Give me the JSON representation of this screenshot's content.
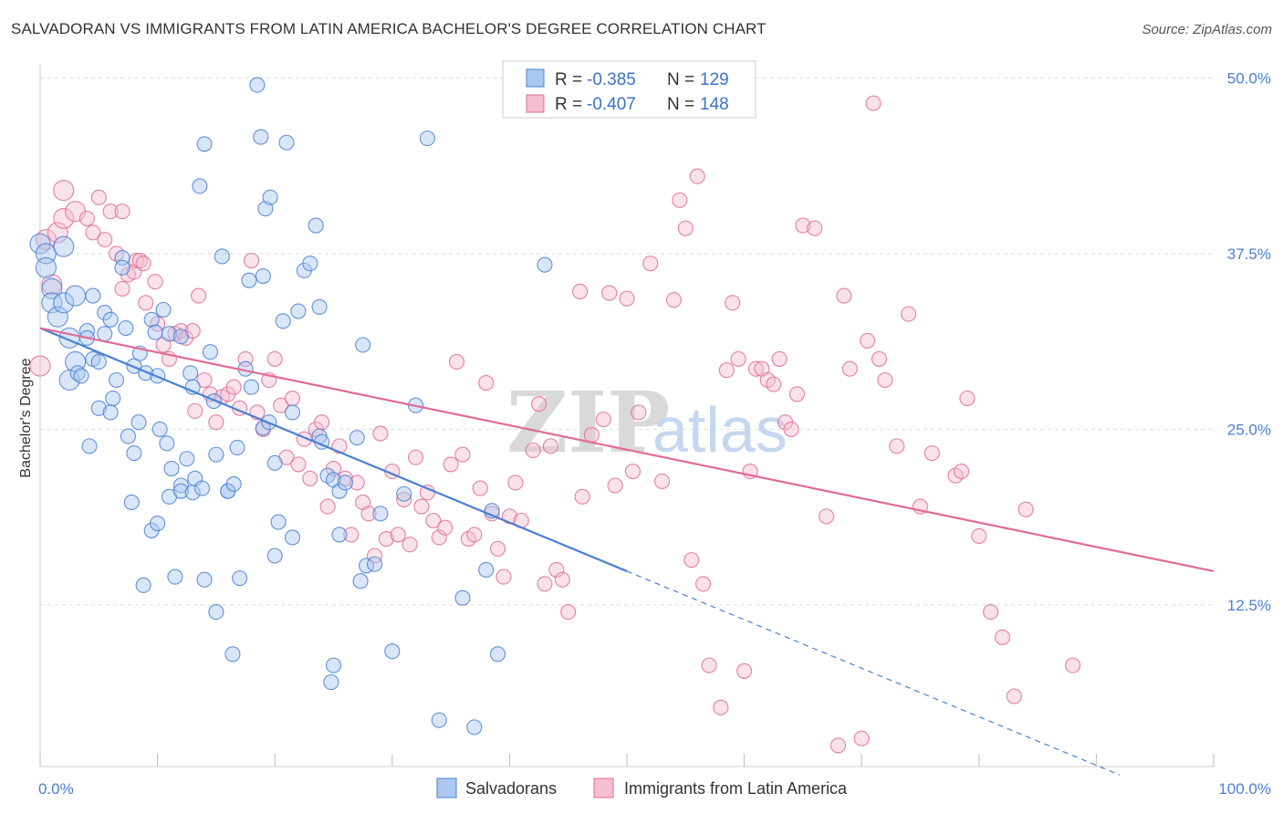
{
  "title": "SALVADORAN VS IMMIGRANTS FROM LATIN AMERICA BACHELOR'S DEGREE CORRELATION CHART",
  "source": "Source: ZipAtlas.com",
  "watermark": {
    "part1": "ZIP",
    "part2": "atlas"
  },
  "colors": {
    "blue": "#4a7fd4",
    "pink": "#e06b96",
    "blue_fill": "#aac8f0",
    "pink_fill": "#f5bfd0"
  },
  "legend": {
    "r_label": "R =",
    "n_label": "N =",
    "items": [
      {
        "r": "-0.385",
        "n": "129",
        "color": "blue"
      },
      {
        "r": "-0.407",
        "n": "148",
        "color": "pink"
      }
    ]
  },
  "chart_data": {
    "type": "scatter",
    "ylabel": "Bachelor's Degree",
    "xlim": [
      0,
      100
    ],
    "ylim": [
      1,
      51
    ],
    "x_tick_labels": [
      "0.0%",
      "100.0%"
    ],
    "y_ticks": [
      {
        "value": 12.5,
        "label": "12.5%"
      },
      {
        "value": 25.0,
        "label": "25.0%"
      },
      {
        "value": 37.5,
        "label": "37.5%"
      },
      {
        "value": 50.0,
        "label": "50.0%"
      }
    ],
    "grid": true,
    "series": [
      {
        "name": "Salvadorans",
        "color": "blue",
        "trend": {
          "x0": 0,
          "y0": 32.2,
          "x1": 50,
          "y1": 14.9,
          "dash_to_x": 92,
          "dash_to_y": 0.4
        },
        "points": [
          [
            0,
            38.2
          ],
          [
            0.5,
            37.5
          ],
          [
            0.5,
            36.5
          ],
          [
            1,
            35
          ],
          [
            1,
            34
          ],
          [
            1.5,
            33
          ],
          [
            2,
            38
          ],
          [
            2,
            34
          ],
          [
            2.5,
            31.5
          ],
          [
            2.5,
            28.5
          ],
          [
            3,
            29.8
          ],
          [
            3,
            34.5
          ],
          [
            3.2,
            29
          ],
          [
            3.5,
            28.8
          ],
          [
            4,
            32
          ],
          [
            4,
            31.5
          ],
          [
            4.2,
            23.8
          ],
          [
            4.5,
            34.5
          ],
          [
            4.5,
            30
          ],
          [
            5,
            26.5
          ],
          [
            5,
            29.8
          ],
          [
            5.5,
            33.3
          ],
          [
            5.5,
            31.8
          ],
          [
            6,
            32.8
          ],
          [
            6,
            26.2
          ],
          [
            6.2,
            27.2
          ],
          [
            6.5,
            28.5
          ],
          [
            7,
            37.2
          ],
          [
            7,
            36.5
          ],
          [
            7.3,
            32.2
          ],
          [
            7.5,
            24.5
          ],
          [
            7.8,
            19.8
          ],
          [
            8,
            29.5
          ],
          [
            8,
            23.3
          ],
          [
            8.4,
            25.5
          ],
          [
            8.5,
            30.4
          ],
          [
            8.8,
            13.9
          ],
          [
            9,
            29
          ],
          [
            9.5,
            32.8
          ],
          [
            9.5,
            17.8
          ],
          [
            9.8,
            31.9
          ],
          [
            10,
            28.8
          ],
          [
            10,
            18.3
          ],
          [
            10.2,
            25
          ],
          [
            10.5,
            33.5
          ],
          [
            10.8,
            24
          ],
          [
            11,
            31.8
          ],
          [
            11,
            20.2
          ],
          [
            11.2,
            22.2
          ],
          [
            11.5,
            14.5
          ],
          [
            12,
            31.6
          ],
          [
            12,
            21
          ],
          [
            12,
            20.6
          ],
          [
            12.5,
            22.9
          ],
          [
            12.8,
            29
          ],
          [
            13,
            28
          ],
          [
            13,
            20.5
          ],
          [
            13.2,
            21.5
          ],
          [
            13.6,
            42.3
          ],
          [
            13.8,
            20.8
          ],
          [
            14,
            45.3
          ],
          [
            14,
            14.3
          ],
          [
            14.5,
            30.5
          ],
          [
            14.8,
            27
          ],
          [
            15,
            23.2
          ],
          [
            15,
            12
          ],
          [
            15.5,
            37.3
          ],
          [
            16,
            20.6
          ],
          [
            16,
            20.6
          ],
          [
            16.4,
            9
          ],
          [
            16.5,
            21.1
          ],
          [
            16.8,
            23.7
          ],
          [
            17,
            14.4
          ],
          [
            17.5,
            29.3
          ],
          [
            17.8,
            35.6
          ],
          [
            18,
            28
          ],
          [
            18.5,
            49.5
          ],
          [
            18.8,
            45.8
          ],
          [
            19,
            35.9
          ],
          [
            19,
            25.1
          ],
          [
            19.2,
            40.7
          ],
          [
            19.5,
            25.5
          ],
          [
            19.6,
            41.5
          ],
          [
            20,
            16
          ],
          [
            20,
            22.6
          ],
          [
            20.3,
            18.4
          ],
          [
            20.7,
            32.7
          ],
          [
            21,
            45.4
          ],
          [
            21.5,
            26.2
          ],
          [
            21.5,
            17.3
          ],
          [
            22,
            33.4
          ],
          [
            22.5,
            36.3
          ],
          [
            23,
            36.8
          ],
          [
            23.5,
            39.5
          ],
          [
            23.8,
            33.7
          ],
          [
            23.8,
            24.5
          ],
          [
            24,
            24.1
          ],
          [
            24.5,
            21.7
          ],
          [
            24.8,
            7
          ],
          [
            25,
            21.4
          ],
          [
            25,
            8.2
          ],
          [
            25.5,
            20.6
          ],
          [
            25.5,
            17.5
          ],
          [
            26,
            21.2
          ],
          [
            27,
            24.4
          ],
          [
            27.3,
            14.2
          ],
          [
            27.5,
            31
          ],
          [
            27.8,
            15.3
          ],
          [
            28.5,
            15.4
          ],
          [
            29,
            19
          ],
          [
            30,
            9.2
          ],
          [
            31,
            20.4
          ],
          [
            32,
            26.7
          ],
          [
            33,
            45.7
          ],
          [
            34,
            4.3
          ],
          [
            36,
            13
          ],
          [
            37,
            3.8
          ],
          [
            38,
            15
          ],
          [
            38.5,
            19.2
          ],
          [
            39,
            9
          ],
          [
            43,
            36.7
          ]
        ]
      },
      {
        "name": "Immigrants from Latin America",
        "color": "pink",
        "trend": {
          "x0": 0,
          "y0": 32.2,
          "x1": 100,
          "y1": 14.9
        },
        "points": [
          [
            0,
            29.5
          ],
          [
            0.5,
            38.5
          ],
          [
            1,
            35.3
          ],
          [
            1.5,
            39
          ],
          [
            2,
            40
          ],
          [
            2,
            42
          ],
          [
            3,
            40.5
          ],
          [
            4,
            40
          ],
          [
            4.5,
            39
          ],
          [
            5,
            41.5
          ],
          [
            5.5,
            38.5
          ],
          [
            6,
            40.5
          ],
          [
            6.5,
            37.5
          ],
          [
            7,
            40.5
          ],
          [
            7,
            35
          ],
          [
            7.5,
            36
          ],
          [
            8,
            36.2
          ],
          [
            8.2,
            37
          ],
          [
            8.5,
            37
          ],
          [
            8.8,
            36.8
          ],
          [
            9,
            34
          ],
          [
            9.8,
            35.5
          ],
          [
            10,
            32.5
          ],
          [
            10.5,
            31
          ],
          [
            11,
            30
          ],
          [
            11.5,
            31.8
          ],
          [
            12,
            32
          ],
          [
            12.4,
            31.5
          ],
          [
            13,
            32
          ],
          [
            13.2,
            26.3
          ],
          [
            13.5,
            34.5
          ],
          [
            14,
            28.5
          ],
          [
            14.5,
            27.5
          ],
          [
            15,
            25.5
          ],
          [
            15.5,
            27.3
          ],
          [
            16,
            27.5
          ],
          [
            16.5,
            28
          ],
          [
            17,
            26.5
          ],
          [
            17.5,
            30
          ],
          [
            18,
            37
          ],
          [
            18.5,
            26.2
          ],
          [
            19,
            25
          ],
          [
            19.5,
            28.5
          ],
          [
            20,
            30
          ],
          [
            20.5,
            26.7
          ],
          [
            21,
            23
          ],
          [
            21.5,
            27.2
          ],
          [
            22,
            22.5
          ],
          [
            22.5,
            24.3
          ],
          [
            23,
            21.5
          ],
          [
            23.5,
            25
          ],
          [
            24,
            25.5
          ],
          [
            24.5,
            19.5
          ],
          [
            25,
            22.2
          ],
          [
            25.5,
            23.8
          ],
          [
            26,
            21.5
          ],
          [
            26.5,
            17.5
          ],
          [
            27,
            21.2
          ],
          [
            27.5,
            19.8
          ],
          [
            28,
            19
          ],
          [
            28.5,
            16
          ],
          [
            29,
            24.7
          ],
          [
            29.5,
            17.2
          ],
          [
            30,
            22
          ],
          [
            30.5,
            17.5
          ],
          [
            31,
            20
          ],
          [
            31.5,
            16.8
          ],
          [
            32,
            23
          ],
          [
            32.5,
            19.5
          ],
          [
            33,
            20.5
          ],
          [
            33.5,
            18.5
          ],
          [
            34,
            17.3
          ],
          [
            34.5,
            18
          ],
          [
            35,
            22.5
          ],
          [
            35.5,
            29.8
          ],
          [
            36,
            23.2
          ],
          [
            36.5,
            17.2
          ],
          [
            37,
            17.5
          ],
          [
            37.5,
            20.8
          ],
          [
            38,
            28.3
          ],
          [
            38.5,
            19
          ],
          [
            39,
            16.5
          ],
          [
            39.5,
            14.5
          ],
          [
            40,
            18.8
          ],
          [
            40.5,
            21.2
          ],
          [
            41,
            18.5
          ],
          [
            42,
            23.5
          ],
          [
            42.5,
            26.8
          ],
          [
            43,
            14
          ],
          [
            43.5,
            23.8
          ],
          [
            44,
            15
          ],
          [
            44.5,
            14.3
          ],
          [
            45,
            12
          ],
          [
            46,
            34.8
          ],
          [
            46.2,
            20.2
          ],
          [
            47,
            24.6
          ],
          [
            48,
            25.7
          ],
          [
            48.5,
            34.7
          ],
          [
            49,
            21
          ],
          [
            50,
            34.3
          ],
          [
            50.5,
            22
          ],
          [
            51,
            26.2
          ],
          [
            52,
            36.8
          ],
          [
            53,
            21.3
          ],
          [
            54,
            34.2
          ],
          [
            54.5,
            41.3
          ],
          [
            55,
            39.3
          ],
          [
            55.5,
            15.7
          ],
          [
            56,
            43
          ],
          [
            56.5,
            14
          ],
          [
            57,
            8.2
          ],
          [
            58,
            5.2
          ],
          [
            58.5,
            29.2
          ],
          [
            59,
            34
          ],
          [
            59.5,
            30
          ],
          [
            60,
            7.8
          ],
          [
            60.5,
            22
          ],
          [
            61,
            29.3
          ],
          [
            61.5,
            29.3
          ],
          [
            62,
            28.5
          ],
          [
            62.5,
            28.2
          ],
          [
            63,
            30
          ],
          [
            63.5,
            25.5
          ],
          [
            64,
            25
          ],
          [
            64.5,
            27.5
          ],
          [
            65,
            39.5
          ],
          [
            66,
            39.3
          ],
          [
            67,
            18.8
          ],
          [
            68,
            2.5
          ],
          [
            68.5,
            34.5
          ],
          [
            69,
            29.3
          ],
          [
            70,
            3
          ],
          [
            70.5,
            31.3
          ],
          [
            71,
            48.2
          ],
          [
            71.5,
            30
          ],
          [
            72,
            28.5
          ],
          [
            73,
            23.8
          ],
          [
            74,
            33.2
          ],
          [
            75,
            19.5
          ],
          [
            76,
            23.3
          ],
          [
            78,
            21.7
          ],
          [
            78.5,
            22
          ],
          [
            79,
            27.2
          ],
          [
            80,
            17.4
          ],
          [
            81,
            12
          ],
          [
            82,
            10.2
          ],
          [
            83,
            6
          ],
          [
            84,
            19.3
          ],
          [
            88,
            8.2
          ]
        ]
      }
    ]
  },
  "bottom_legend": [
    {
      "label": "Salvadorans",
      "color": "blue"
    },
    {
      "label": "Immigrants from Latin America",
      "color": "pink"
    }
  ]
}
